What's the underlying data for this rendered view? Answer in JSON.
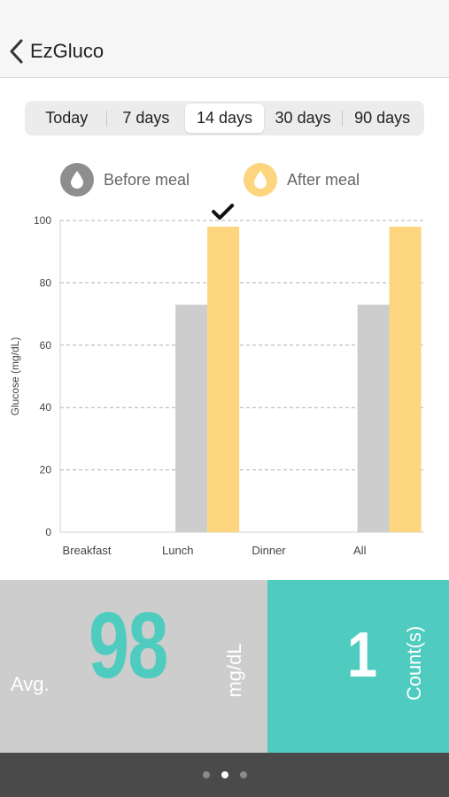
{
  "nav": {
    "title": "EzGluco"
  },
  "range_tabs": [
    {
      "label": "Today",
      "active": false
    },
    {
      "label": "7 days",
      "active": false
    },
    {
      "label": "14 days",
      "active": true
    },
    {
      "label": "30 days",
      "active": false
    },
    {
      "label": "90 days",
      "active": false
    }
  ],
  "legend": {
    "before": {
      "label": "Before meal",
      "color": "#8e8e8e",
      "icon": "drop-icon"
    },
    "after": {
      "label": "After meal",
      "color": "#fdd57e",
      "icon": "drop-icon"
    }
  },
  "chart_data": {
    "type": "bar",
    "categories": [
      "Breakfast",
      "Lunch",
      "Dinner",
      "All"
    ],
    "series": [
      {
        "name": "Before meal",
        "values": [
          null,
          73,
          null,
          73
        ],
        "color": "#cdcdcd"
      },
      {
        "name": "After meal",
        "values": [
          null,
          98,
          null,
          98
        ],
        "color": "#fdd57e"
      }
    ],
    "ylabel": "Glucose (mg/dL)",
    "xlabel": "",
    "ylim": [
      0,
      100
    ],
    "yticks": [
      0,
      20,
      40,
      60,
      80,
      100
    ],
    "grid": true,
    "marker": {
      "category": "Lunch",
      "series": "After meal",
      "symbol": "check-icon"
    }
  },
  "stats": {
    "avg_label": "Avg.",
    "avg_value": "98",
    "avg_unit": "mg/dL",
    "count_value": "1",
    "count_unit": "Count(s)",
    "accent": "#4fccbf",
    "panel_gray": "#cdcdcd"
  },
  "pager": {
    "pages": 3,
    "current": 1
  }
}
